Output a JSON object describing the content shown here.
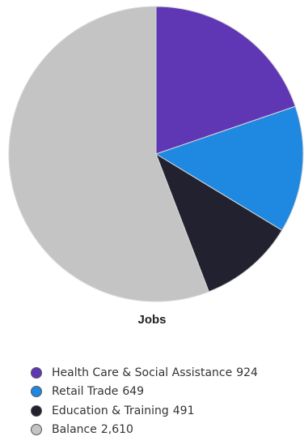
{
  "chart_data": {
    "type": "pie",
    "title": "Jobs",
    "legend_position": "bottom",
    "slices": [
      {
        "label": "Health Care & Social Assistance",
        "value": 924,
        "value_label": "924",
        "color": "#5f37b4"
      },
      {
        "label": "Retail Trade",
        "value": 649,
        "value_label": "649",
        "color": "#1f88e0"
      },
      {
        "label": "Education & Training",
        "value": 491,
        "value_label": "491",
        "color": "#22212f"
      },
      {
        "label": "Balance",
        "value": 2610,
        "value_label": "2,610",
        "color": "#c4c4c4"
      }
    ]
  }
}
